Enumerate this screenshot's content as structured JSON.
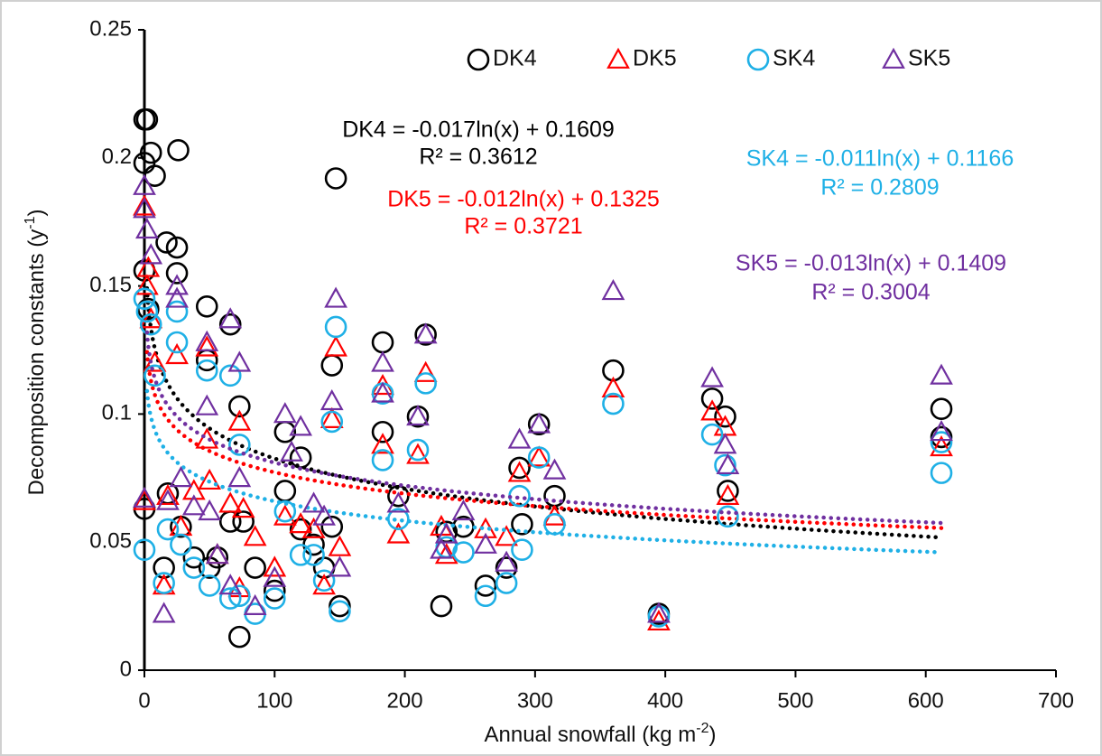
{
  "chart_data": {
    "type": "scatter",
    "xlabel": [
      "Annual snowfall  (kg m",
      "-2",
      ")"
    ],
    "ylabel": [
      "Decomposition constants  (y",
      "-1",
      ")"
    ],
    "xlim": [
      0,
      700
    ],
    "xticks": [
      0,
      100,
      200,
      300,
      400,
      500,
      600,
      700
    ],
    "ylim": [
      0,
      0.25
    ],
    "yticks": [
      0,
      0.05,
      0.1,
      0.15,
      0.2,
      0.25
    ],
    "grid": false,
    "legend": "top",
    "series": [
      {
        "name": "DK4",
        "color": "#000000",
        "marker": "circle",
        "x": [
          0,
          2,
          0,
          5,
          8,
          26,
          17,
          25,
          25,
          48,
          66,
          48,
          73,
          0,
          3,
          147,
          144,
          183,
          216,
          183,
          210,
          108,
          120,
          0,
          15,
          18,
          28,
          38,
          50,
          56,
          66,
          73,
          76,
          85,
          100,
          108,
          120,
          130,
          138,
          144,
          150,
          195,
          228,
          232,
          245,
          262,
          278,
          288,
          290,
          303,
          315,
          360,
          395,
          436,
          446,
          448,
          612,
          612
        ],
        "values": [
          0.215,
          0.215,
          0.198,
          0.202,
          0.193,
          0.203,
          0.167,
          0.165,
          0.155,
          0.142,
          0.135,
          0.121,
          0.103,
          0.156,
          0.141,
          0.192,
          0.119,
          0.128,
          0.131,
          0.093,
          0.099,
          0.093,
          0.083,
          0.063,
          0.04,
          0.069,
          0.056,
          0.044,
          0.04,
          0.044,
          0.058,
          0.013,
          0.058,
          0.04,
          0.031,
          0.07,
          0.055,
          0.049,
          0.04,
          0.056,
          0.025,
          0.068,
          0.025,
          0.054,
          0.056,
          0.033,
          0.04,
          0.079,
          0.057,
          0.096,
          0.068,
          0.117,
          0.022,
          0.106,
          0.099,
          0.07,
          0.102,
          0.091
        ],
        "trendline": {
          "a": -0.017,
          "b": 0.1609,
          "label": "DK4 = -0.017ln(x)  + 0.1609",
          "r2": "R² = 0.3612"
        }
      },
      {
        "name": "DK5",
        "color": "#ff0000",
        "marker": "triangle",
        "x": [
          0,
          3,
          2,
          5,
          8,
          25,
          48,
          48,
          73,
          0,
          15,
          18,
          28,
          38,
          50,
          56,
          66,
          73,
          76,
          85,
          100,
          108,
          120,
          130,
          138,
          144,
          147,
          150,
          183,
          183,
          210,
          216,
          195,
          228,
          232,
          262,
          278,
          288,
          303,
          315,
          360,
          395,
          436,
          446,
          448,
          612
        ],
        "values": [
          0.181,
          0.157,
          0.15,
          0.137,
          0.12,
          0.123,
          0.126,
          0.09,
          0.097,
          0.066,
          0.033,
          0.068,
          0.056,
          0.07,
          0.074,
          0.045,
          0.065,
          0.032,
          0.063,
          0.052,
          0.04,
          0.06,
          0.057,
          0.055,
          0.033,
          0.098,
          0.126,
          0.048,
          0.088,
          0.111,
          0.084,
          0.116,
          0.053,
          0.056,
          0.045,
          0.055,
          0.052,
          0.077,
          0.083,
          0.06,
          0.11,
          0.019,
          0.101,
          0.095,
          0.068,
          0.087
        ],
        "trendline": {
          "a": -0.012,
          "b": 0.1325,
          "label": "DK5 = -0.012ln(x)  + 0.1325",
          "r2": "R² = 0.3721"
        }
      },
      {
        "name": "SK4",
        "color": "#1fb0e6",
        "marker": "circle",
        "x": [
          0,
          2,
          5,
          8,
          25,
          25,
          48,
          66,
          73,
          0,
          15,
          18,
          28,
          38,
          50,
          66,
          73,
          85,
          100,
          108,
          120,
          130,
          138,
          144,
          150,
          147,
          183,
          183,
          210,
          216,
          195,
          232,
          245,
          262,
          278,
          288,
          290,
          303,
          315,
          360,
          395,
          436,
          446,
          448,
          612,
          612
        ],
        "values": [
          0.145,
          0.14,
          0.135,
          0.115,
          0.128,
          0.14,
          0.117,
          0.115,
          0.088,
          0.047,
          0.034,
          0.055,
          0.049,
          0.04,
          0.033,
          0.028,
          0.029,
          0.022,
          0.028,
          0.062,
          0.045,
          0.045,
          0.035,
          0.097,
          0.023,
          0.134,
          0.082,
          0.108,
          0.086,
          0.112,
          0.059,
          0.048,
          0.046,
          0.029,
          0.034,
          0.068,
          0.047,
          0.083,
          0.057,
          0.104,
          0.021,
          0.092,
          0.08,
          0.06,
          0.077,
          0.089
        ],
        "trendline": {
          "a": -0.011,
          "b": 0.1166,
          "label": "SK4 = -0.011ln(x)  + 0.1166",
          "r2": "R² = 0.2809"
        }
      },
      {
        "name": "SK5",
        "color": "#7030a0",
        "marker": "triangle",
        "x": [
          0,
          2,
          5,
          0,
          25,
          25,
          48,
          66,
          73,
          48,
          0,
          15,
          18,
          28,
          38,
          50,
          56,
          66,
          73,
          85,
          100,
          108,
          113,
          120,
          130,
          138,
          144,
          147,
          150,
          183,
          183,
          210,
          216,
          195,
          228,
          232,
          245,
          262,
          278,
          288,
          303,
          315,
          360,
          395,
          436,
          446,
          448,
          612,
          612
        ],
        "values": [
          0.189,
          0.172,
          0.162,
          0.18,
          0.15,
          0.145,
          0.128,
          0.137,
          0.12,
          0.103,
          0.067,
          0.022,
          0.066,
          0.075,
          0.064,
          0.062,
          0.045,
          0.033,
          0.075,
          0.025,
          0.036,
          0.1,
          0.085,
          0.095,
          0.065,
          0.06,
          0.105,
          0.145,
          0.04,
          0.12,
          0.108,
          0.099,
          0.131,
          0.065,
          0.047,
          0.053,
          0.062,
          0.049,
          0.042,
          0.09,
          0.096,
          0.078,
          0.148,
          0.022,
          0.114,
          0.088,
          0.08,
          0.115,
          0.093
        ],
        "trendline": {
          "a": -0.013,
          "b": 0.1409,
          "label": "SK5 = -0.013ln(x)  + 0.1409",
          "r2": "R² = 0.3004"
        }
      }
    ]
  }
}
